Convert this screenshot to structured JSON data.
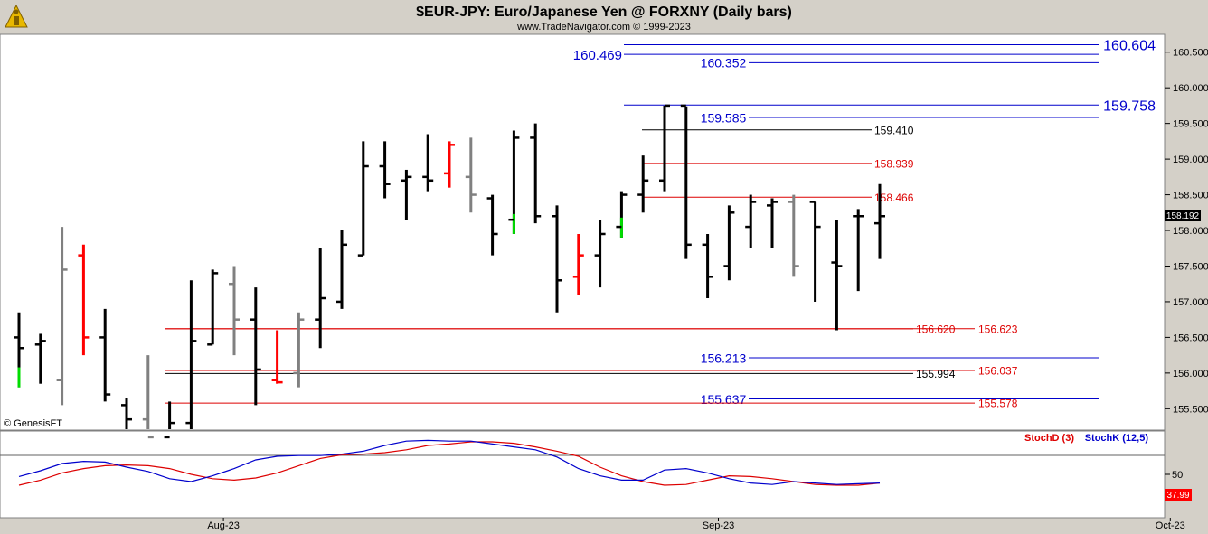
{
  "header": {
    "title": "$EUR-JPY:  Euro/Japanese Yen @ FORXNY  (Daily bars)",
    "subtitle": "www.TradeNavigator.com © 1999-2023"
  },
  "watermark": "© GenesisFT",
  "price_badge": "158.192",
  "stoch_badge": "37.99",
  "colors": {
    "up_bar": "#000000",
    "down_bar": "#808080",
    "red_bar": "#ff0000",
    "green_bar": "#00dd00",
    "blue_level": "#0000cc",
    "red_level": "#dd0000",
    "black_level": "#000000",
    "stoch_d": "#dd0000",
    "stoch_k": "#0000cc",
    "panel_bg": "#ffffff",
    "frame_bg": "#d4d0c8"
  },
  "chart_data": [
    {
      "type": "ohlc",
      "title": "$EUR-JPY:  Euro/Japanese Yen @ FORXNY  (Daily bars)",
      "ylim": [
        155.2,
        160.75
      ],
      "yticks": [
        "160.500",
        "160.000",
        "159.500",
        "159.000",
        "158.500",
        "158.000",
        "157.500",
        "157.000",
        "156.500",
        "156.000",
        "155.500"
      ],
      "xticks": [
        {
          "index": 9.5,
          "label": "Aug-23"
        },
        {
          "index": 32.5,
          "label": "Sep-23"
        },
        {
          "index": 53.5,
          "label": "Oct-23"
        }
      ],
      "bars": [
        {
          "o": 156.5,
          "h": 156.85,
          "l": 155.8,
          "c": 156.35,
          "color": "black",
          "low_color": "green"
        },
        {
          "o": 156.4,
          "h": 156.55,
          "l": 155.85,
          "c": 156.45,
          "color": "black"
        },
        {
          "o": 155.9,
          "h": 158.05,
          "l": 155.55,
          "c": 157.45,
          "color": "gray"
        },
        {
          "o": 157.65,
          "h": 157.8,
          "l": 156.25,
          "c": 156.5,
          "color": "red"
        },
        {
          "o": 156.5,
          "h": 156.9,
          "l": 155.6,
          "c": 155.7,
          "color": "black"
        },
        {
          "o": 155.55,
          "h": 155.65,
          "l": 155.05,
          "c": 155.35,
          "color": "black"
        },
        {
          "o": 155.35,
          "h": 156.25,
          "l": 154.9,
          "c": 155.1,
          "color": "gray"
        },
        {
          "o": 155.1,
          "h": 155.6,
          "l": 154.8,
          "c": 155.3,
          "color": "black"
        },
        {
          "o": 155.3,
          "h": 157.3,
          "l": 154.9,
          "c": 156.45,
          "color": "black"
        },
        {
          "o": 156.4,
          "h": 157.45,
          "l": 156.4,
          "c": 157.4,
          "color": "black"
        },
        {
          "o": 157.25,
          "h": 157.5,
          "l": 156.25,
          "c": 156.75,
          "color": "gray"
        },
        {
          "o": 156.75,
          "h": 157.2,
          "l": 155.55,
          "c": 156.05,
          "color": "black"
        },
        {
          "o": 155.9,
          "h": 156.6,
          "l": 155.85,
          "c": 155.87,
          "color": "red"
        },
        {
          "o": 156.0,
          "h": 156.85,
          "l": 155.8,
          "c": 156.75,
          "color": "gray"
        },
        {
          "o": 156.75,
          "h": 157.75,
          "l": 156.35,
          "c": 157.05,
          "color": "black"
        },
        {
          "o": 157.0,
          "h": 158.0,
          "l": 156.9,
          "c": 157.8,
          "color": "black"
        },
        {
          "o": 157.65,
          "h": 159.25,
          "l": 157.65,
          "c": 158.9,
          "color": "black"
        },
        {
          "o": 158.9,
          "h": 159.25,
          "l": 158.45,
          "c": 158.65,
          "color": "black"
        },
        {
          "o": 158.7,
          "h": 158.85,
          "l": 158.15,
          "c": 158.75,
          "color": "black"
        },
        {
          "o": 158.75,
          "h": 159.35,
          "l": 158.55,
          "c": 158.7,
          "color": "black"
        },
        {
          "o": 158.8,
          "h": 159.25,
          "l": 158.6,
          "c": 159.2,
          "color": "red"
        },
        {
          "o": 158.75,
          "h": 159.3,
          "l": 158.25,
          "c": 158.5,
          "color": "gray"
        },
        {
          "o": 158.45,
          "h": 158.5,
          "l": 157.65,
          "c": 157.95,
          "color": "black"
        },
        {
          "o": 158.15,
          "h": 159.4,
          "l": 157.95,
          "c": 159.3,
          "color": "black",
          "low_color": "green"
        },
        {
          "o": 159.3,
          "h": 159.5,
          "l": 158.1,
          "c": 158.2,
          "color": "black"
        },
        {
          "o": 158.2,
          "h": 158.35,
          "l": 156.85,
          "c": 157.3,
          "color": "black"
        },
        {
          "o": 157.35,
          "h": 157.95,
          "l": 157.1,
          "c": 157.65,
          "color": "red"
        },
        {
          "o": 157.65,
          "h": 158.15,
          "l": 157.2,
          "c": 157.95,
          "color": "black"
        },
        {
          "o": 158.05,
          "h": 158.55,
          "l": 157.9,
          "c": 158.5,
          "color": "black",
          "low_color": "green"
        },
        {
          "o": 158.5,
          "h": 159.05,
          "l": 158.25,
          "c": 158.7,
          "color": "black"
        },
        {
          "o": 158.7,
          "h": 159.75,
          "l": 158.55,
          "c": 159.75,
          "color": "black"
        },
        {
          "o": 159.75,
          "h": 159.74,
          "l": 157.6,
          "c": 157.8,
          "color": "black"
        },
        {
          "o": 157.8,
          "h": 157.95,
          "l": 157.05,
          "c": 157.35,
          "color": "black"
        },
        {
          "o": 157.5,
          "h": 158.35,
          "l": 157.3,
          "c": 158.25,
          "color": "black"
        },
        {
          "o": 158.05,
          "h": 158.5,
          "l": 157.75,
          "c": 158.4,
          "color": "black"
        },
        {
          "o": 158.35,
          "h": 158.45,
          "l": 157.75,
          "c": 158.4,
          "color": "black"
        },
        {
          "o": 158.4,
          "h": 158.5,
          "l": 157.35,
          "c": 157.5,
          "color": "gray"
        },
        {
          "o": 158.4,
          "h": 158.4,
          "l": 157.0,
          "c": 158.05,
          "color": "black"
        },
        {
          "o": 157.55,
          "h": 158.15,
          "l": 156.6,
          "c": 157.5,
          "color": "black"
        },
        {
          "o": 158.2,
          "h": 158.3,
          "l": 157.15,
          "c": 158.2,
          "color": "black"
        },
        {
          "o": 158.1,
          "h": 158.65,
          "l": 157.6,
          "c": 158.2,
          "color": "black"
        }
      ],
      "levels": [
        {
          "value": 160.604,
          "label": "160.604",
          "color": "blue",
          "big": true
        },
        {
          "value": 160.469,
          "label": "160.469",
          "color": "blue",
          "label_side": "left"
        },
        {
          "value": 160.352,
          "label": "160.352",
          "color": "blue"
        },
        {
          "value": 159.758,
          "label": "159.758",
          "color": "blue",
          "big": true
        },
        {
          "value": 159.585,
          "label": "159.585",
          "color": "blue"
        },
        {
          "value": 159.41,
          "label": "159.410",
          "color": "black"
        },
        {
          "value": 158.939,
          "label": "158.939",
          "color": "red"
        },
        {
          "value": 158.466,
          "label": "158.466",
          "color": "red"
        },
        {
          "value": 156.62,
          "label": "156.620",
          "color": "red"
        },
        {
          "value": 156.623,
          "label": "156.623",
          "color": "red"
        },
        {
          "value": 156.213,
          "label": "156.213",
          "color": "blue"
        },
        {
          "value": 156.037,
          "label": "156.037",
          "color": "red"
        },
        {
          "value": 155.994,
          "label": "155.994",
          "color": "black"
        },
        {
          "value": 155.637,
          "label": "155.637",
          "color": "blue"
        },
        {
          "value": 155.578,
          "label": "155.578",
          "color": "red"
        }
      ]
    },
    {
      "type": "line",
      "legend": [
        "StochD (3)",
        "StochK (12,5)"
      ],
      "ylim": [
        0,
        100
      ],
      "yticks": [
        "50"
      ],
      "series": [
        {
          "name": "StochD (3)",
          "color": "red",
          "values": [
            35,
            42,
            52,
            58,
            62,
            63,
            62,
            58,
            50,
            44,
            42,
            45,
            52,
            62,
            72,
            77,
            78,
            80,
            84,
            90,
            92,
            95,
            95,
            93,
            88,
            82,
            75,
            60,
            48,
            40,
            35,
            36,
            42,
            48,
            47,
            44,
            40,
            36,
            35,
            35,
            37.99
          ]
        },
        {
          "name": "StochK (12,5)",
          "color": "blue",
          "values": [
            47,
            55,
            65,
            68,
            67,
            60,
            54,
            44,
            40,
            48,
            58,
            70,
            75,
            76,
            76,
            78,
            82,
            90,
            96,
            97,
            96,
            96,
            92,
            88,
            84,
            74,
            58,
            48,
            42,
            42,
            56,
            58,
            52,
            44,
            38,
            36,
            40,
            38,
            36,
            37,
            37.99
          ]
        }
      ]
    }
  ]
}
